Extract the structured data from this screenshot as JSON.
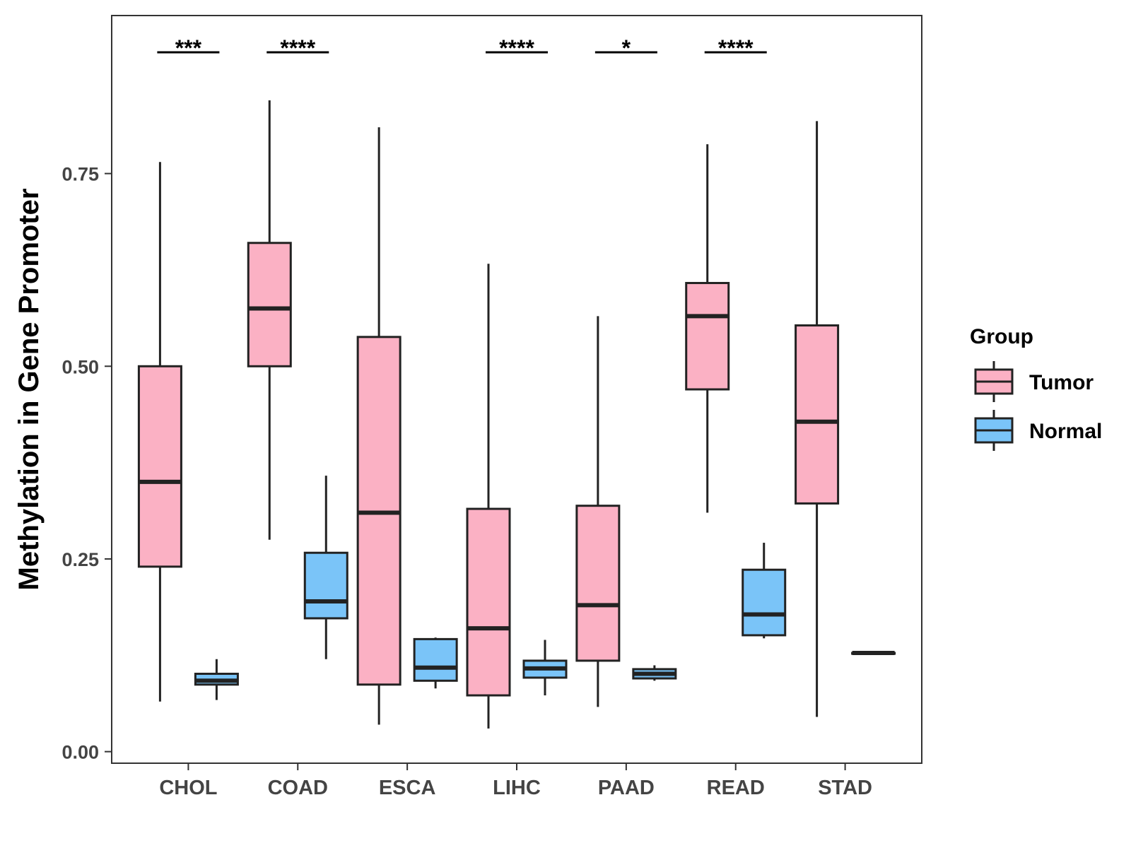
{
  "chart_data": {
    "type": "box",
    "title": "",
    "xlabel": "",
    "ylabel": "Methylation in Gene Promoter",
    "ylim": [
      -0.015,
      0.955
    ],
    "yticks": [
      "0.00",
      "0.25",
      "0.50",
      "0.75"
    ],
    "categories": [
      "CHOL",
      "COAD",
      "ESCA",
      "LIHC",
      "PAAD",
      "READ",
      "STAD"
    ],
    "legend": {
      "title": "Group",
      "position": "right",
      "items": [
        {
          "name": "Tumor",
          "color": "#FBB1C4"
        },
        {
          "name": "Normal",
          "color": "#7AC4F8"
        }
      ]
    },
    "series": [
      {
        "name": "Tumor",
        "color": "#FBB1C4",
        "boxes": [
          {
            "min": 0.065,
            "q1": 0.24,
            "median": 0.35,
            "q3": 0.5,
            "max": 0.765
          },
          {
            "min": 0.275,
            "q1": 0.5,
            "median": 0.575,
            "q3": 0.66,
            "max": 0.845
          },
          {
            "min": 0.035,
            "q1": 0.087,
            "median": 0.31,
            "q3": 0.538,
            "max": 0.81
          },
          {
            "min": 0.03,
            "q1": 0.073,
            "median": 0.16,
            "q3": 0.315,
            "max": 0.633
          },
          {
            "min": 0.058,
            "q1": 0.118,
            "median": 0.19,
            "q3": 0.319,
            "max": 0.565
          },
          {
            "min": 0.31,
            "q1": 0.47,
            "median": 0.565,
            "q3": 0.608,
            "max": 0.788
          },
          {
            "min": 0.045,
            "q1": 0.322,
            "median": 0.428,
            "q3": 0.553,
            "max": 0.818
          }
        ]
      },
      {
        "name": "Normal",
        "color": "#7AC4F8",
        "boxes": [
          {
            "min": 0.067,
            "q1": 0.087,
            "median": 0.092,
            "q3": 0.101,
            "max": 0.12
          },
          {
            "min": 0.12,
            "q1": 0.173,
            "median": 0.195,
            "q3": 0.258,
            "max": 0.358
          },
          {
            "min": 0.082,
            "q1": 0.092,
            "median": 0.109,
            "q3": 0.146,
            "max": 0.148
          },
          {
            "min": 0.073,
            "q1": 0.096,
            "median": 0.108,
            "q3": 0.118,
            "max": 0.145
          },
          {
            "min": 0.092,
            "q1": 0.095,
            "median": 0.101,
            "q3": 0.107,
            "max": 0.112
          },
          {
            "min": 0.147,
            "q1": 0.151,
            "median": 0.178,
            "q3": 0.236,
            "max": 0.271
          },
          {
            "min": 0.128,
            "q1": 0.128,
            "median": 0.128,
            "q3": 0.128,
            "max": 0.128
          }
        ]
      }
    ],
    "significance": [
      {
        "category": "CHOL",
        "label": "***"
      },
      {
        "category": "COAD",
        "label": "****"
      },
      {
        "category": "LIHC",
        "label": "****"
      },
      {
        "category": "PAAD",
        "label": "*"
      },
      {
        "category": "READ",
        "label": "****"
      }
    ]
  }
}
